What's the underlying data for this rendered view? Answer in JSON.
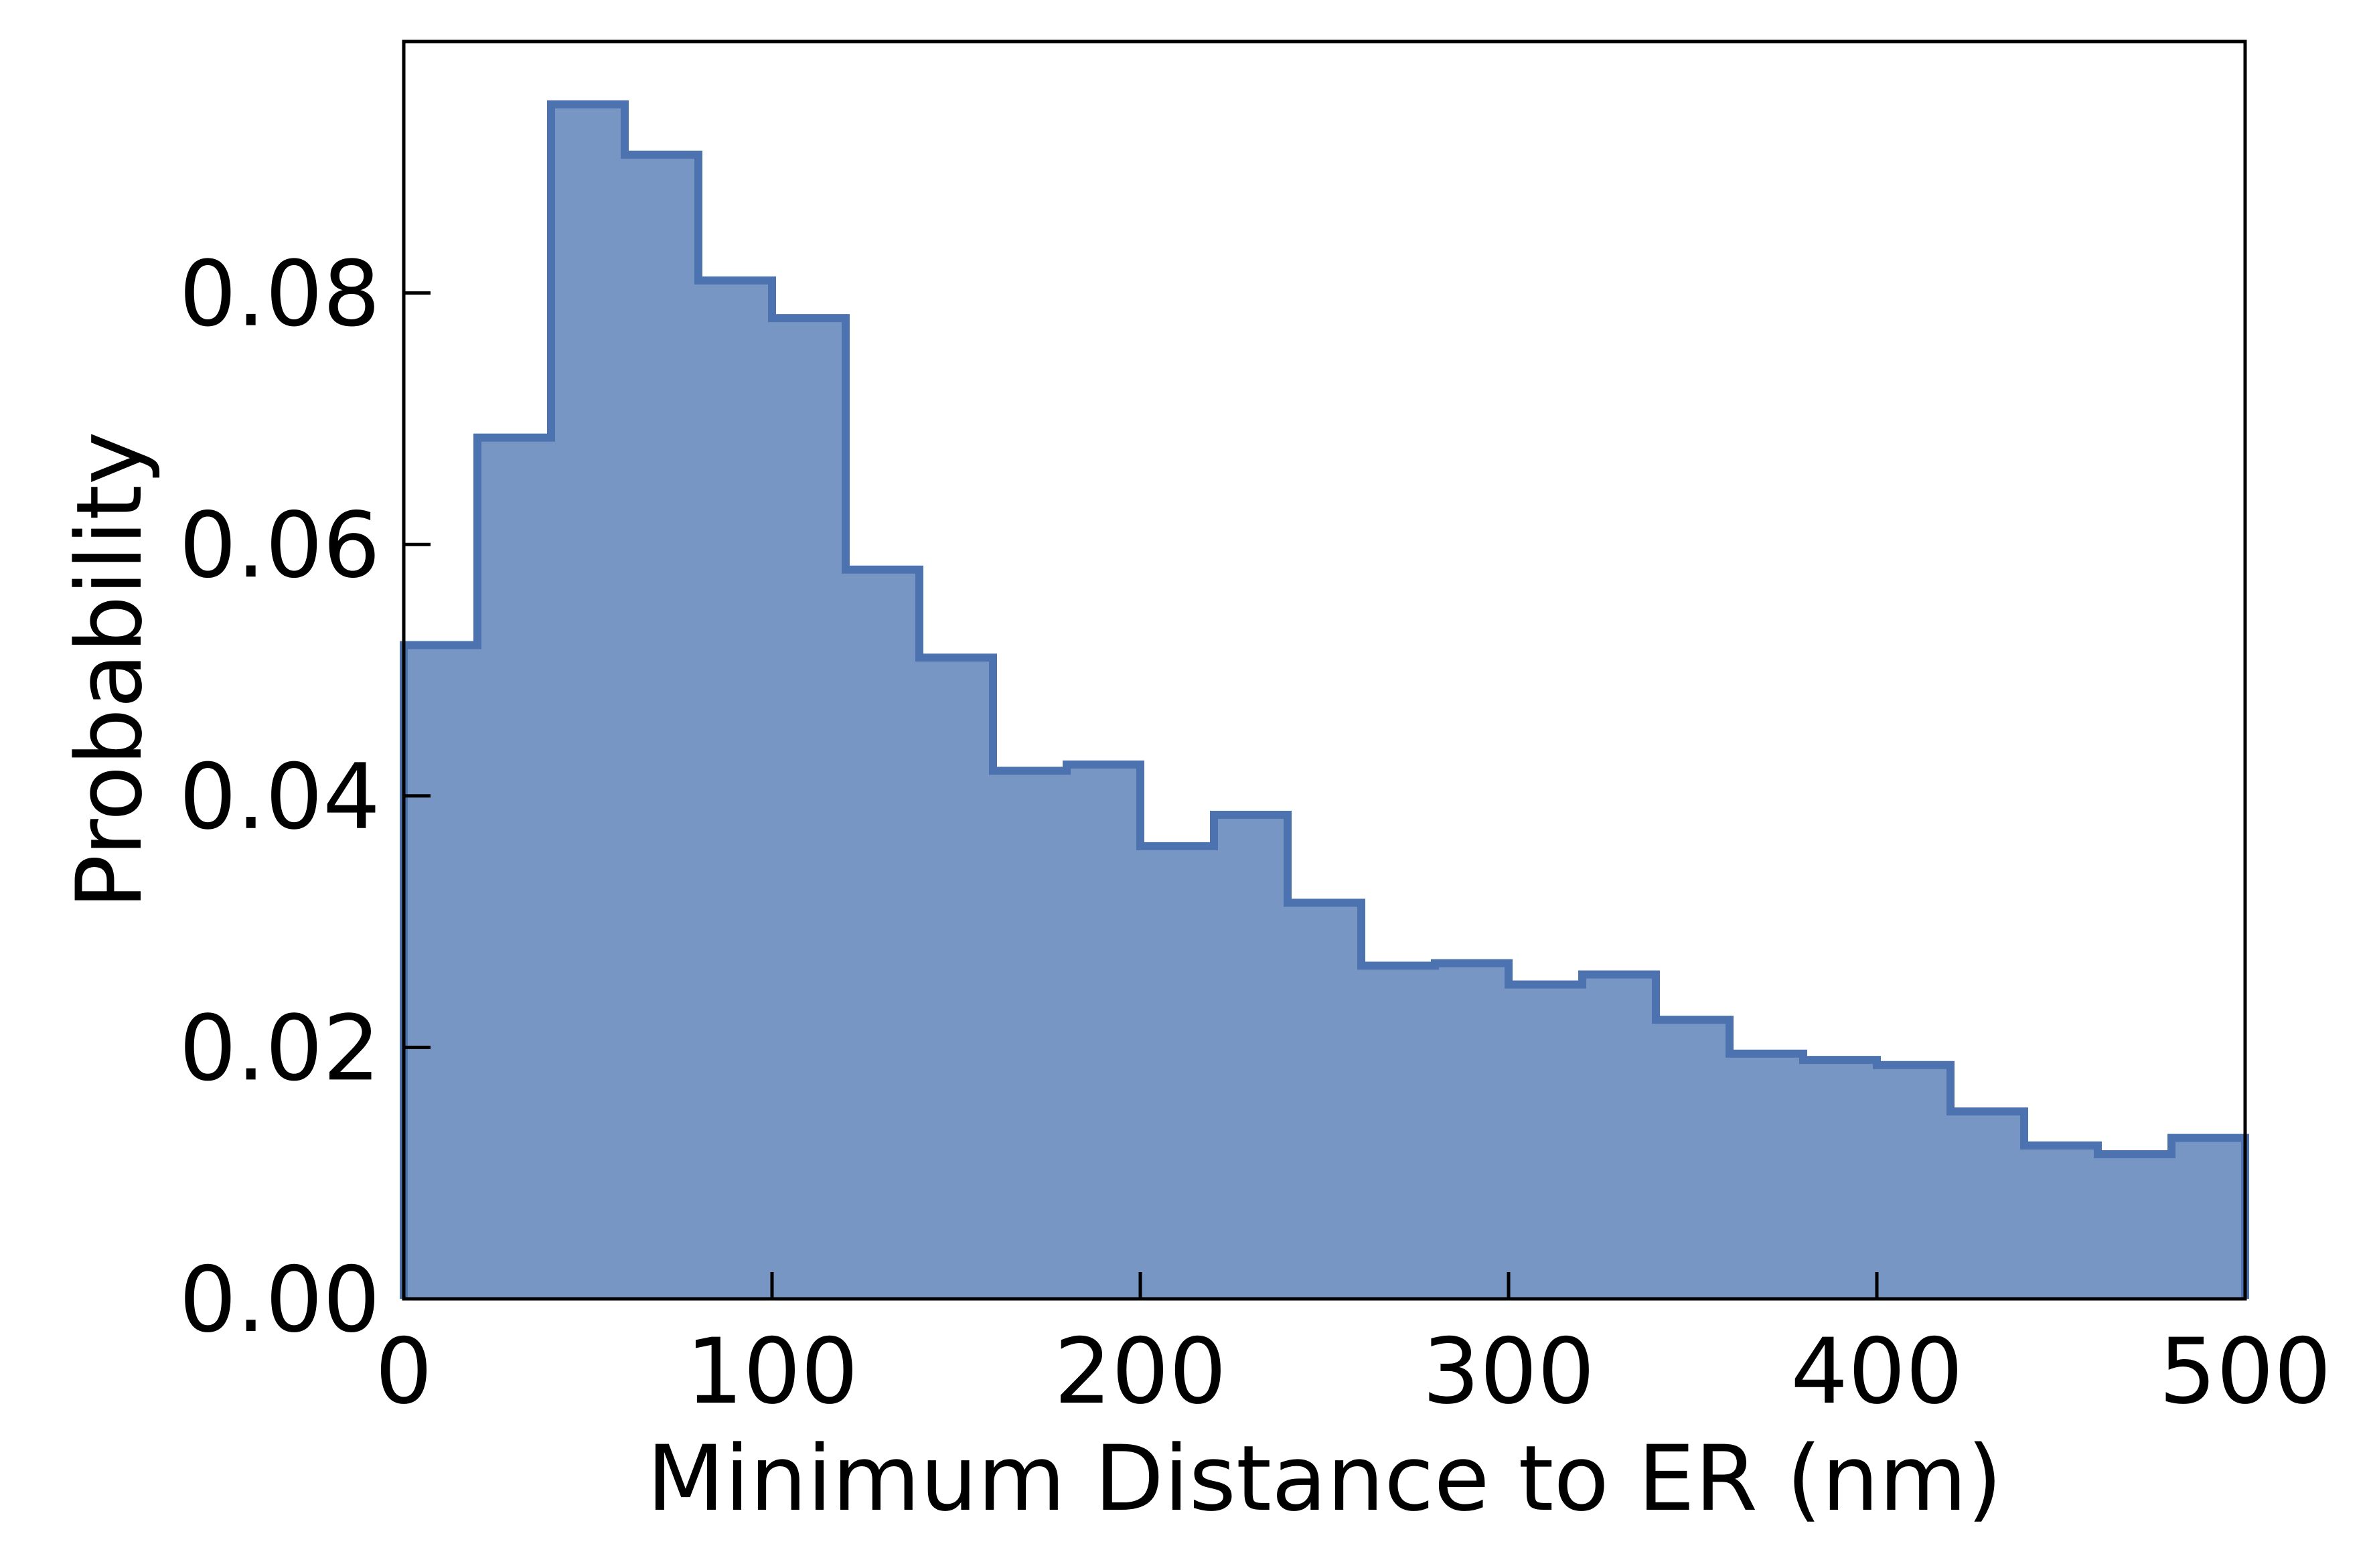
{
  "chart_data": {
    "type": "histogram",
    "title": "",
    "xlabel": "Minimum Distance to ER (nm)",
    "ylabel": "Probability",
    "xlim": [
      0,
      500
    ],
    "ylim": [
      0,
      0.1
    ],
    "grid": false,
    "bin_width": 20,
    "bin_edges": [
      0,
      20,
      40,
      60,
      80,
      100,
      120,
      140,
      160,
      180,
      200,
      220,
      240,
      260,
      280,
      300,
      320,
      340,
      360,
      380,
      400,
      420,
      440,
      460,
      480,
      500
    ],
    "values": [
      0.052,
      0.0685,
      0.095,
      0.091,
      0.081,
      0.078,
      0.058,
      0.051,
      0.042,
      0.0425,
      0.036,
      0.0385,
      0.0315,
      0.0265,
      0.0267,
      0.025,
      0.0258,
      0.0222,
      0.0195,
      0.019,
      0.0186,
      0.0149,
      0.0122,
      0.0115,
      0.0128
    ],
    "xticks": [
      {
        "value": 0,
        "label": "0"
      },
      {
        "value": 100,
        "label": "100"
      },
      {
        "value": 200,
        "label": "200"
      },
      {
        "value": 300,
        "label": "300"
      },
      {
        "value": 400,
        "label": "400"
      },
      {
        "value": 500,
        "label": "500"
      }
    ],
    "yticks": [
      {
        "value": 0,
        "label": "0.00"
      },
      {
        "value": 0.02,
        "label": "0.02"
      },
      {
        "value": 0.04,
        "label": "0.04"
      },
      {
        "value": 0.06,
        "label": "0.06"
      },
      {
        "value": 0.08,
        "label": "0.08"
      }
    ],
    "colors": {
      "fill": "#7896c4",
      "edge": "#4c72b0",
      "axes": "#000000"
    }
  }
}
